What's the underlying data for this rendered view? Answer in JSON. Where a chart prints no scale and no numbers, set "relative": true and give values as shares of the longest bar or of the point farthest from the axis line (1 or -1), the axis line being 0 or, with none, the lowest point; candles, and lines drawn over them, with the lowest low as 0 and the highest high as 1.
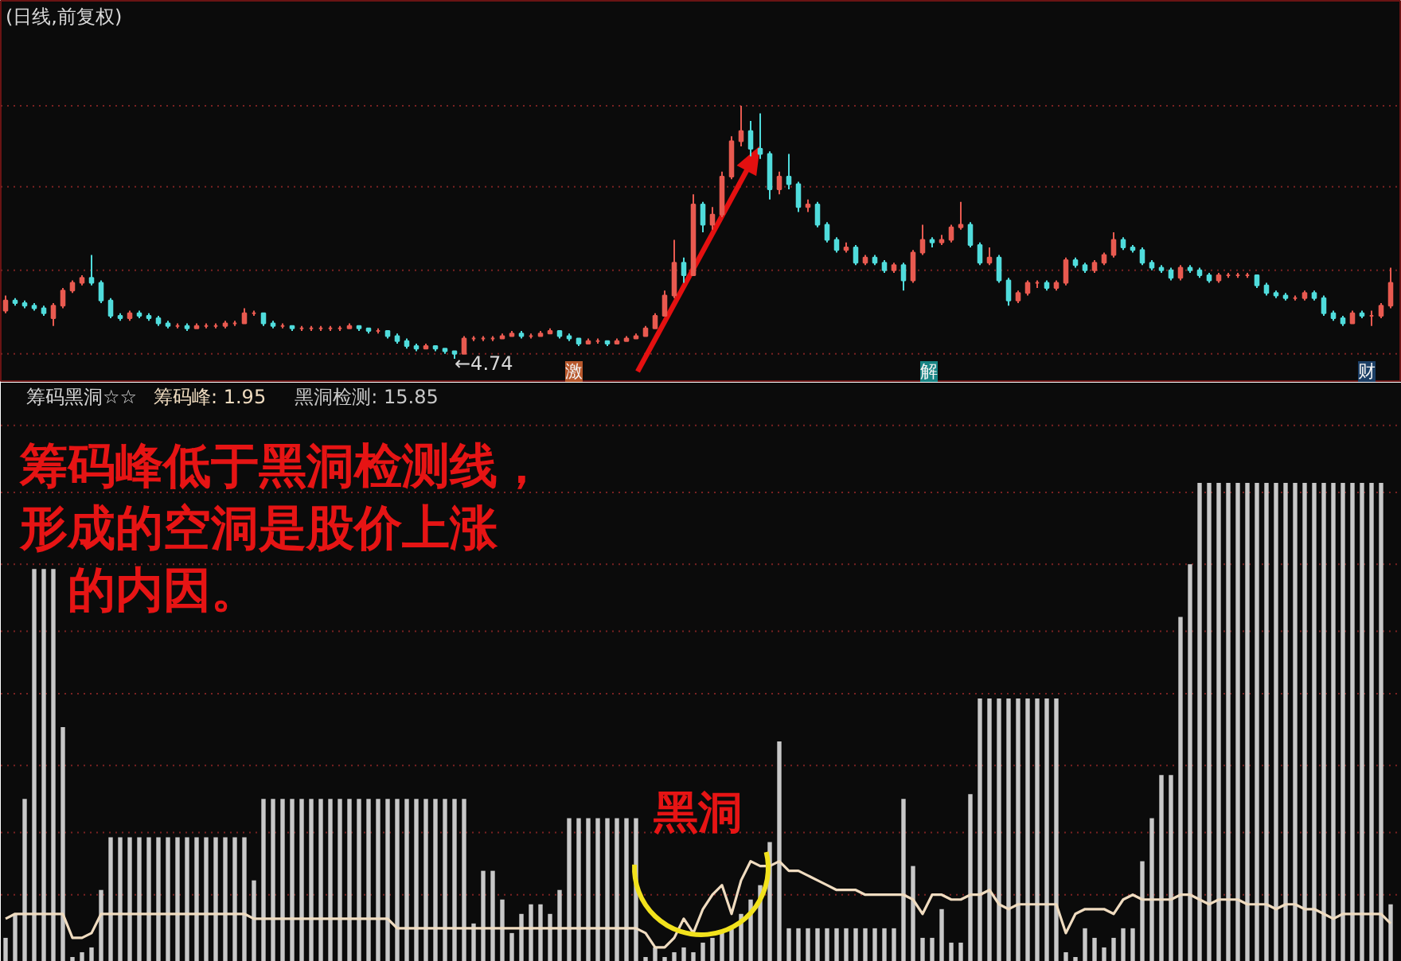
{
  "chart_data": [
    {
      "type": "candlestick",
      "title": "(日线,前复权)",
      "relative": true,
      "ref_lines": [
        {
          "axis": "y",
          "value": 1.0,
          "color": "#7a2222",
          "line_style": "dotted"
        },
        {
          "axis": "y",
          "value": 0.68,
          "color": "#7a2222",
          "line_style": "dotted"
        },
        {
          "axis": "y",
          "value": 0.35,
          "color": "#7a2222",
          "line_style": "dotted"
        },
        {
          "axis": "y",
          "value": 0.02,
          "color": "#7a2222",
          "line_style": "dotted"
        }
      ],
      "colors": [
        "#e85a50",
        "#50dcdc",
        "#50dcdc",
        "#50dcdc",
        "#50dcdc",
        "#e85a50",
        "#e85a50",
        "#e85a50",
        "#e85a50",
        "#50dcdc",
        "#50dcdc",
        "#50dcdc",
        "#50dcdc",
        "#e85a50",
        "#50dcdc",
        "#50dcdc",
        "#50dcdc",
        "#50dcdc",
        "#e85a50",
        "#50dcdc",
        "#e85a50",
        "#e85a50",
        "#e85a50",
        "#e85a50",
        "#e85a50",
        "#e85a50",
        "#e85a50",
        "#50dcdc",
        "#50dcdc",
        "#e85a50",
        "#50dcdc",
        "#e85a50",
        "#e85a50",
        "#e85a50",
        "#e85a50",
        "#e85a50",
        "#e85a50",
        "#50dcdc",
        "#50dcdc",
        "#e85a50",
        "#50dcdc",
        "#50dcdc",
        "#50dcdc",
        "#50dcdc",
        "#e85a50",
        "#50dcdc",
        "#50dcdc",
        "#50dcdc",
        "#e85a50",
        "#e85a50",
        "#e85a50",
        "#e85a50",
        "#e85a50",
        "#e85a50",
        "#50dcdc",
        "#e85a50",
        "#e85a50",
        "#e85a50",
        "#50dcdc",
        "#50dcdc",
        "#50dcdc",
        "#e85a50",
        "#e85a50",
        "#50dcdc",
        "#e85a50",
        "#e85a50",
        "#e85a50",
        "#e85a50",
        "#e85a50",
        "#e85a50",
        "#e85a50",
        "#50dcdc",
        "#e85a50",
        "#50dcdc",
        "#e85a50",
        "#e85a50",
        "#e85a50",
        "#e85a50",
        "#50dcdc",
        "#50dcdc",
        "#50dcdc",
        "#e85a50",
        "#50dcdc",
        "#50dcdc",
        "#e85a50",
        "#50dcdc",
        "#50dcdc",
        "#50dcdc",
        "#e85a50",
        "#50dcdc",
        "#e85a50",
        "#50dcdc",
        "#50dcdc",
        "#e85a50",
        "#50dcdc",
        "#e85a50",
        "#e85a50",
        "#50dcdc",
        "#e85a50",
        "#e85a50",
        "#e85a50",
        "#50dcdc",
        "#50dcdc",
        "#e85a50",
        "#50dcdc",
        "#50dcdc",
        "#e85a50",
        "#e85a50",
        "#e85a50",
        "#50dcdc",
        "#e85a50",
        "#e85a50",
        "#50dcdc",
        "#50dcdc",
        "#e85a50",
        "#e85a50",
        "#e85a50",
        "#50dcdc",
        "#50dcdc",
        "#50dcdc",
        "#50dcdc",
        "#50dcdc",
        "#50dcdc",
        "#e85a50",
        "#50dcdc",
        "#50dcdc",
        "#50dcdc",
        "#e85a50",
        "#e85a50",
        "#e85a50",
        "#e85a50",
        "#50dcdc",
        "#50dcdc",
        "#50dcdc",
        "#50dcdc",
        "#e85a50",
        "#e85a50",
        "#50dcdc",
        "#50dcdc",
        "#50dcdc",
        "#50dcdc",
        "#e85a50",
        "#50dcdc",
        "#e85a50",
        "#e85a50",
        "#e85a50"
      ],
      "categories": [
        null,
        null,
        null,
        null,
        null,
        null,
        null,
        null,
        null,
        null,
        null,
        null,
        null,
        null,
        null,
        null,
        null,
        null,
        null,
        null,
        null,
        null,
        null,
        null,
        null,
        null,
        null,
        null,
        null,
        null,
        null,
        null,
        null,
        null,
        null,
        null,
        null,
        null,
        null,
        null,
        null,
        null,
        null,
        null,
        null,
        null,
        null,
        null,
        null,
        null,
        null,
        null,
        null,
        null,
        null,
        null,
        null,
        null,
        null,
        null,
        null,
        null,
        null,
        null,
        null,
        null,
        null,
        null,
        null,
        null,
        null,
        null,
        null,
        null,
        null,
        null,
        null,
        null,
        null,
        null,
        null,
        null,
        null,
        null,
        null,
        null,
        null,
        null,
        null,
        null,
        null,
        null,
        null,
        null,
        null,
        null,
        null,
        null,
        null,
        null,
        null,
        null,
        null,
        null,
        null,
        null,
        null,
        null,
        null,
        null,
        null,
        null,
        null,
        null,
        null,
        null,
        null,
        null,
        null,
        null,
        null,
        null,
        null,
        null,
        null,
        null,
        null,
        null,
        null,
        null,
        null,
        null,
        null,
        null,
        null,
        null,
        null,
        null,
        null,
        null,
        null,
        null,
        null,
        null,
        null,
        null
      ],
      "ohlc": [
        [
          0.19,
          0.25,
          0.18,
          0.23
        ],
        [
          0.23,
          0.24,
          0.21,
          0.22
        ],
        [
          0.22,
          0.23,
          0.2,
          0.21
        ],
        [
          0.21,
          0.22,
          0.19,
          0.2
        ],
        [
          0.2,
          0.21,
          0.17,
          0.18
        ],
        [
          0.16,
          0.22,
          0.13,
          0.21
        ],
        [
          0.21,
          0.28,
          0.2,
          0.27
        ],
        [
          0.27,
          0.31,
          0.26,
          0.3
        ],
        [
          0.3,
          0.33,
          0.29,
          0.32
        ],
        [
          0.32,
          0.41,
          0.29,
          0.3
        ],
        [
          0.3,
          0.31,
          0.22,
          0.23
        ],
        [
          0.23,
          0.24,
          0.16,
          0.17
        ],
        [
          0.17,
          0.18,
          0.15,
          0.16
        ],
        [
          0.16,
          0.19,
          0.15,
          0.18
        ],
        [
          0.18,
          0.19,
          0.16,
          0.17
        ],
        [
          0.17,
          0.18,
          0.15,
          0.16
        ],
        [
          0.16,
          0.17,
          0.13,
          0.14
        ],
        [
          0.14,
          0.15,
          0.12,
          0.13
        ],
        [
          0.13,
          0.14,
          0.12,
          0.13
        ],
        [
          0.13,
          0.14,
          0.11,
          0.12
        ],
        [
          0.12,
          0.14,
          0.12,
          0.13
        ],
        [
          0.13,
          0.14,
          0.12,
          0.13
        ],
        [
          0.13,
          0.14,
          0.12,
          0.13
        ],
        [
          0.13,
          0.15,
          0.12,
          0.14
        ],
        [
          0.14,
          0.15,
          0.13,
          0.14
        ],
        [
          0.14,
          0.2,
          0.14,
          0.18
        ],
        [
          0.18,
          0.19,
          0.17,
          0.18
        ],
        [
          0.18,
          0.18,
          0.13,
          0.14
        ],
        [
          0.14,
          0.15,
          0.12,
          0.13
        ],
        [
          0.13,
          0.14,
          0.12,
          0.13
        ],
        [
          0.13,
          0.13,
          0.11,
          0.12
        ],
        [
          0.12,
          0.13,
          0.11,
          0.12
        ],
        [
          0.12,
          0.13,
          0.11,
          0.12
        ],
        [
          0.12,
          0.13,
          0.11,
          0.12
        ],
        [
          0.12,
          0.13,
          0.11,
          0.12
        ],
        [
          0.12,
          0.13,
          0.11,
          0.12
        ],
        [
          0.12,
          0.14,
          0.12,
          0.13
        ],
        [
          0.13,
          0.13,
          0.11,
          0.12
        ],
        [
          0.12,
          0.12,
          0.1,
          0.11
        ],
        [
          0.11,
          0.12,
          0.1,
          0.11
        ],
        [
          0.11,
          0.11,
          0.08,
          0.09
        ],
        [
          0.09,
          0.1,
          0.06,
          0.07
        ],
        [
          0.07,
          0.08,
          0.04,
          0.05
        ],
        [
          0.05,
          0.06,
          0.03,
          0.04
        ],
        [
          0.04,
          0.06,
          0.04,
          0.05
        ],
        [
          0.05,
          0.05,
          0.03,
          0.04
        ],
        [
          0.04,
          0.04,
          0.02,
          0.03
        ],
        [
          0.03,
          0.03,
          0.0,
          0.02
        ],
        [
          0.02,
          0.09,
          0.02,
          0.08
        ],
        [
          0.08,
          0.09,
          0.07,
          0.08
        ],
        [
          0.08,
          0.09,
          0.07,
          0.08
        ],
        [
          0.08,
          0.09,
          0.07,
          0.08
        ],
        [
          0.08,
          0.1,
          0.08,
          0.09
        ],
        [
          0.09,
          0.11,
          0.09,
          0.1
        ],
        [
          0.1,
          0.11,
          0.08,
          0.09
        ],
        [
          0.09,
          0.1,
          0.08,
          0.09
        ],
        [
          0.09,
          0.11,
          0.09,
          0.1
        ],
        [
          0.1,
          0.12,
          0.1,
          0.11
        ],
        [
          0.11,
          0.11,
          0.08,
          0.09
        ],
        [
          0.09,
          0.1,
          0.07,
          0.08
        ],
        [
          0.08,
          0.08,
          0.05,
          0.06
        ],
        [
          0.06,
          0.08,
          0.06,
          0.07
        ],
        [
          0.07,
          0.08,
          0.06,
          0.07
        ],
        [
          0.07,
          0.07,
          0.05,
          0.06
        ],
        [
          0.06,
          0.08,
          0.06,
          0.07
        ],
        [
          0.07,
          0.09,
          0.07,
          0.08
        ],
        [
          0.08,
          0.1,
          0.08,
          0.09
        ],
        [
          0.09,
          0.13,
          0.09,
          0.12
        ],
        [
          0.12,
          0.18,
          0.12,
          0.17
        ],
        [
          0.17,
          0.27,
          0.17,
          0.25
        ],
        [
          0.25,
          0.47,
          0.24,
          0.38
        ],
        [
          0.38,
          0.4,
          0.3,
          0.33
        ],
        [
          0.33,
          0.65,
          0.33,
          0.61
        ],
        [
          0.61,
          0.62,
          0.5,
          0.53
        ],
        [
          0.53,
          0.6,
          0.51,
          0.57
        ],
        [
          0.57,
          0.74,
          0.56,
          0.72
        ],
        [
          0.72,
          0.88,
          0.71,
          0.86
        ],
        [
          0.86,
          1.0,
          0.84,
          0.9
        ],
        [
          0.9,
          0.94,
          0.8,
          0.83
        ],
        [
          0.83,
          0.97,
          0.79,
          0.81
        ],
        [
          0.81,
          0.82,
          0.63,
          0.67
        ],
        [
          0.67,
          0.74,
          0.65,
          0.72
        ],
        [
          0.72,
          0.81,
          0.67,
          0.69
        ],
        [
          0.69,
          0.7,
          0.58,
          0.6
        ],
        [
          0.6,
          0.63,
          0.58,
          0.61
        ],
        [
          0.61,
          0.62,
          0.52,
          0.53
        ],
        [
          0.53,
          0.54,
          0.46,
          0.47
        ],
        [
          0.47,
          0.48,
          0.42,
          0.43
        ],
        [
          0.43,
          0.46,
          0.42,
          0.44
        ],
        [
          0.44,
          0.45,
          0.37,
          0.38
        ],
        [
          0.38,
          0.41,
          0.37,
          0.4
        ],
        [
          0.4,
          0.41,
          0.37,
          0.38
        ],
        [
          0.38,
          0.39,
          0.34,
          0.35
        ],
        [
          0.35,
          0.38,
          0.34,
          0.37
        ],
        [
          0.37,
          0.38,
          0.27,
          0.31
        ],
        [
          0.31,
          0.43,
          0.3,
          0.42
        ],
        [
          0.42,
          0.53,
          0.41,
          0.47
        ],
        [
          0.47,
          0.48,
          0.44,
          0.46
        ],
        [
          0.46,
          0.49,
          0.45,
          0.47
        ],
        [
          0.47,
          0.53,
          0.46,
          0.52
        ],
        [
          0.52,
          0.62,
          0.51,
          0.53
        ],
        [
          0.53,
          0.54,
          0.44,
          0.45
        ],
        [
          0.45,
          0.46,
          0.37,
          0.38
        ],
        [
          0.38,
          0.44,
          0.37,
          0.4
        ],
        [
          0.4,
          0.41,
          0.3,
          0.31
        ],
        [
          0.31,
          0.32,
          0.21,
          0.23
        ],
        [
          0.23,
          0.27,
          0.22,
          0.26
        ],
        [
          0.26,
          0.31,
          0.25,
          0.3
        ],
        [
          0.3,
          0.31,
          0.28,
          0.3
        ],
        [
          0.3,
          0.31,
          0.27,
          0.28
        ],
        [
          0.28,
          0.31,
          0.27,
          0.3
        ],
        [
          0.3,
          0.4,
          0.29,
          0.39
        ],
        [
          0.39,
          0.4,
          0.36,
          0.37
        ],
        [
          0.37,
          0.38,
          0.34,
          0.35
        ],
        [
          0.35,
          0.39,
          0.34,
          0.38
        ],
        [
          0.38,
          0.42,
          0.37,
          0.41
        ],
        [
          0.41,
          0.5,
          0.4,
          0.47
        ],
        [
          0.47,
          0.48,
          0.43,
          0.44
        ],
        [
          0.44,
          0.45,
          0.42,
          0.43
        ],
        [
          0.43,
          0.44,
          0.37,
          0.38
        ],
        [
          0.38,
          0.39,
          0.35,
          0.36
        ],
        [
          0.36,
          0.37,
          0.34,
          0.35
        ],
        [
          0.35,
          0.36,
          0.31,
          0.32
        ],
        [
          0.32,
          0.37,
          0.31,
          0.36
        ],
        [
          0.36,
          0.37,
          0.34,
          0.35
        ],
        [
          0.35,
          0.36,
          0.32,
          0.33
        ],
        [
          0.33,
          0.34,
          0.3,
          0.31
        ],
        [
          0.31,
          0.34,
          0.3,
          0.33
        ],
        [
          0.33,
          0.34,
          0.32,
          0.33
        ],
        [
          0.33,
          0.34,
          0.32,
          0.33
        ],
        [
          0.33,
          0.34,
          0.32,
          0.33
        ],
        [
          0.33,
          0.33,
          0.28,
          0.29
        ],
        [
          0.29,
          0.3,
          0.25,
          0.26
        ],
        [
          0.26,
          0.27,
          0.24,
          0.25
        ],
        [
          0.25,
          0.26,
          0.23,
          0.24
        ],
        [
          0.24,
          0.25,
          0.23,
          0.24
        ],
        [
          0.24,
          0.27,
          0.23,
          0.26
        ],
        [
          0.26,
          0.27,
          0.23,
          0.24
        ],
        [
          0.24,
          0.25,
          0.17,
          0.18
        ],
        [
          0.18,
          0.19,
          0.15,
          0.16
        ],
        [
          0.16,
          0.17,
          0.13,
          0.14
        ],
        [
          0.14,
          0.19,
          0.14,
          0.18
        ],
        [
          0.18,
          0.19,
          0.16,
          0.17
        ],
        [
          0.17,
          0.19,
          0.13,
          0.17
        ],
        [
          0.17,
          0.22,
          0.16,
          0.21
        ],
        [
          0.21,
          0.36,
          0.2,
          0.3
        ]
      ],
      "annotations": [
        "←4.74",
        "激",
        "解",
        "财"
      ]
    },
    {
      "type": "bar",
      "title": "筹码黑洞☆☆",
      "relative": true,
      "ref_lines": [
        {
          "axis": "y",
          "value": 1.12,
          "color": "#7a2222",
          "line_style": "dotted"
        },
        {
          "axis": "y",
          "value": 0.98,
          "color": "#7a2222",
          "line_style": "dotted"
        },
        {
          "axis": "y",
          "value": 0.83,
          "color": "#7a2222",
          "line_style": "dotted"
        },
        {
          "axis": "y",
          "value": 0.69,
          "color": "#7a2222",
          "line_style": "dotted"
        },
        {
          "axis": "y",
          "value": 0.56,
          "color": "#7a2222",
          "line_style": "dotted"
        },
        {
          "axis": "y",
          "value": 0.41,
          "color": "#7a2222",
          "line_style": "dotted"
        },
        {
          "axis": "y",
          "value": 0.27,
          "color": "#7a2222",
          "line_style": "dotted"
        },
        {
          "axis": "y",
          "value": 0.14,
          "color": "#7a2222",
          "line_style": "dotted"
        }
      ],
      "categories": [
        null,
        null,
        null,
        null,
        null,
        null,
        null,
        null,
        null,
        null,
        null,
        null,
        null,
        null,
        null,
        null,
        null,
        null,
        null,
        null,
        null,
        null,
        null,
        null,
        null,
        null,
        null,
        null,
        null,
        null,
        null,
        null,
        null,
        null,
        null,
        null,
        null,
        null,
        null,
        null,
        null,
        null,
        null,
        null,
        null,
        null,
        null,
        null,
        null,
        null,
        null,
        null,
        null,
        null,
        null,
        null,
        null,
        null,
        null,
        null,
        null,
        null,
        null,
        null,
        null,
        null,
        null,
        null,
        null,
        null,
        null,
        null,
        null,
        null,
        null,
        null,
        null,
        null,
        null,
        null,
        null,
        null,
        null,
        null,
        null,
        null,
        null,
        null,
        null,
        null,
        null,
        null,
        null,
        null,
        null,
        null,
        null,
        null,
        null,
        null,
        null,
        null,
        null,
        null,
        null,
        null,
        null,
        null,
        null,
        null,
        null,
        null,
        null,
        null,
        null,
        null,
        null,
        null,
        null,
        null,
        null,
        null,
        null,
        null,
        null,
        null,
        null,
        null,
        null,
        null,
        null,
        null,
        null,
        null,
        null,
        null,
        null,
        null,
        null,
        null,
        null,
        null,
        null,
        null,
        null,
        null
      ],
      "series": [
        {
          "name": "筹码峰: 1.95",
          "type": "line",
          "color": "#f0dcc0",
          "values": [
            0.09,
            0.1,
            0.1,
            0.1,
            0.1,
            0.1,
            0.1,
            0.05,
            0.05,
            0.06,
            0.1,
            0.1,
            0.1,
            0.1,
            0.1,
            0.1,
            0.1,
            0.1,
            0.1,
            0.1,
            0.1,
            0.1,
            0.1,
            0.1,
            0.1,
            0.1,
            0.09,
            0.09,
            0.09,
            0.09,
            0.09,
            0.09,
            0.09,
            0.09,
            0.09,
            0.09,
            0.09,
            0.09,
            0.09,
            0.09,
            0.09,
            0.07,
            0.07,
            0.07,
            0.07,
            0.07,
            0.07,
            0.07,
            0.07,
            0.07,
            0.07,
            0.07,
            0.07,
            0.07,
            0.07,
            0.07,
            0.07,
            0.07,
            0.07,
            0.07,
            0.07,
            0.07,
            0.07,
            0.07,
            0.07,
            0.07,
            0.07,
            0.06,
            0.03,
            0.03,
            0.05,
            0.09,
            0.06,
            0.11,
            0.14,
            0.16,
            0.1,
            0.17,
            0.21,
            0.2,
            0.2,
            0.21,
            0.19,
            0.19,
            0.18,
            0.17,
            0.16,
            0.15,
            0.15,
            0.15,
            0.14,
            0.14,
            0.14,
            0.14,
            0.14,
            0.13,
            0.1,
            0.14,
            0.14,
            0.13,
            0.13,
            0.14,
            0.14,
            0.15,
            0.12,
            0.11,
            0.12,
            0.12,
            0.12,
            0.12,
            0.12,
            0.06,
            0.1,
            0.11,
            0.11,
            0.11,
            0.1,
            0.13,
            0.14,
            0.13,
            0.13,
            0.13,
            0.13,
            0.14,
            0.14,
            0.13,
            0.12,
            0.13,
            0.13,
            0.13,
            0.12,
            0.12,
            0.12,
            0.11,
            0.12,
            0.12,
            0.11,
            0.11,
            0.1,
            0.09,
            0.1,
            0.1,
            0.1,
            0.1,
            0.1,
            0.08
          ]
        },
        {
          "name": "黑洞检测: 15.85",
          "type": "bar",
          "color": "#c8c8c8",
          "values": [
            0.05,
            0.1,
            0.34,
            0.82,
            0.82,
            0.82,
            0.49,
            0.01,
            0.02,
            0.03,
            0.15,
            0.26,
            0.26,
            0.26,
            0.26,
            0.26,
            0.26,
            0.26,
            0.26,
            0.26,
            0.26,
            0.26,
            0.26,
            0.26,
            0.26,
            0.26,
            0.17,
            0.34,
            0.34,
            0.34,
            0.34,
            0.34,
            0.34,
            0.34,
            0.34,
            0.34,
            0.34,
            0.34,
            0.34,
            0.34,
            0.34,
            0.34,
            0.34,
            0.34,
            0.34,
            0.34,
            0.34,
            0.34,
            0.34,
            0.08,
            0.19,
            0.19,
            0.13,
            0.06,
            0.1,
            0.12,
            0.12,
            0.1,
            0.15,
            0.3,
            0.3,
            0.3,
            0.3,
            0.3,
            0.3,
            0.3,
            0.3,
            0.01,
            0.03,
            0.01,
            0.02,
            0.03,
            0.02,
            0.04,
            0.05,
            0.06,
            0.07,
            0.1,
            0.13,
            0.16,
            0.25,
            0.46,
            0.07,
            0.07,
            0.07,
            0.07,
            0.07,
            0.07,
            0.07,
            0.07,
            0.07,
            0.07,
            0.07,
            0.07,
            0.34,
            0.2,
            0.05,
            0.05,
            0.11,
            0.04,
            0.04,
            0.35,
            0.55,
            0.55,
            0.55,
            0.55,
            0.55,
            0.55,
            0.55,
            0.55,
            0.55,
            0.02,
            0.01,
            0.07,
            0.05,
            0.03,
            0.05,
            0.07,
            0.07,
            0.21,
            0.3,
            0.39,
            0.39,
            0.72,
            0.83,
            1.0,
            1.0,
            1.0,
            1.0,
            1.0,
            1.0,
            1.0,
            1.0,
            1.0,
            1.0,
            1.0,
            1.0,
            1.0,
            1.0,
            1.0,
            1.0,
            1.0,
            1.0,
            1.0,
            1.0,
            0.12
          ]
        }
      ],
      "annotations": [
        "筹码峰低于黑洞检测线，形成的空洞是股价上涨的内因。",
        "黑洞"
      ]
    }
  ]
}
